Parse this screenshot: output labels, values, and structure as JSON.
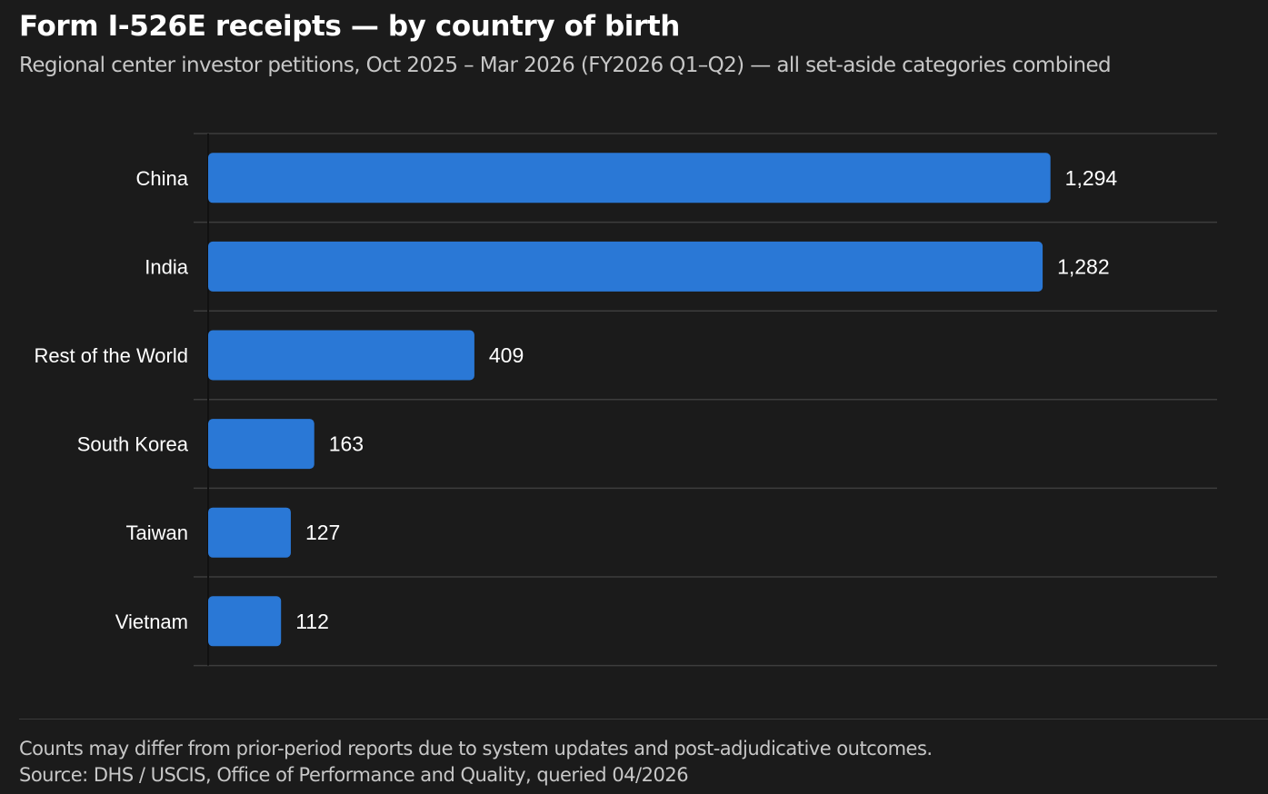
{
  "header": {
    "title": "Form I-526E receipts — by country of birth",
    "subtitle": "Regional center investor petitions, Oct 2025 – Mar 2026 (FY2026 Q1–Q2) — all set-aside categories combined"
  },
  "footer": {
    "note": "Counts may differ from prior-period reports due to system updates and post-adjudicative outcomes.",
    "source": "Source: DHS / USCIS, Office of Performance and Quality, queried 04/2026"
  },
  "colors": {
    "background": "#1b1b1b",
    "bar": "#2a78d6",
    "gridline": "#3d3d3d",
    "text": "#ffffff",
    "muted_text": "#c7c7c7"
  },
  "chart_data": {
    "type": "bar",
    "orientation": "horizontal",
    "categories": [
      "China",
      "India",
      "Rest of the World",
      "South Korea",
      "Taiwan",
      "Vietnam"
    ],
    "values": [
      1294,
      1282,
      409,
      163,
      127,
      112
    ],
    "value_labels": [
      "1,294",
      "1,282",
      "409",
      "163",
      "127",
      "112"
    ],
    "xlim": [
      0,
      1550
    ],
    "grid": true,
    "legend": "none"
  }
}
